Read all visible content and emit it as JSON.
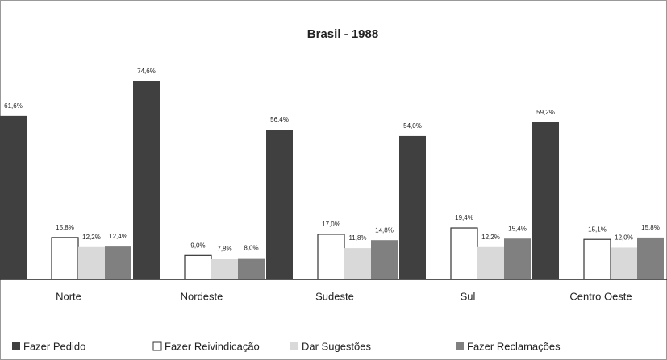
{
  "chart_data": {
    "type": "bar",
    "title": "Brasil - 1988",
    "categories": [
      "Norte",
      "Nordeste",
      "Sudeste",
      "Sul",
      "Centro Oeste"
    ],
    "series": [
      {
        "name": "Fazer Pedido",
        "color": "#404040",
        "values": [
          61.6,
          74.6,
          56.4,
          54.0,
          59.2
        ],
        "value_labels": [
          "61,6%",
          "74,6%",
          "56,4%",
          "54,0%",
          "59,2%"
        ]
      },
      {
        "name": "Fazer Reivindicação",
        "color": "#ffffff",
        "values": [
          15.8,
          9.0,
          17.0,
          19.4,
          15.1
        ],
        "value_labels": [
          "15,8%",
          "9,0%",
          "17,0%",
          "19,4%",
          "15,1%"
        ]
      },
      {
        "name": "Dar Sugestões",
        "color": "#d9d9d9",
        "values": [
          12.2,
          7.8,
          11.8,
          12.2,
          12.0
        ],
        "value_labels": [
          "12,2%",
          "7,8%",
          "11,8%",
          "12,2%",
          "12,0%"
        ]
      },
      {
        "name": "Fazer Reclamações",
        "color": "#808080",
        "values": [
          12.4,
          8.0,
          14.8,
          15.4,
          15.8
        ],
        "value_labels": [
          "12,4%",
          "8,0%",
          "14,8%",
          "15,4%",
          "15,8%"
        ]
      }
    ]
  }
}
